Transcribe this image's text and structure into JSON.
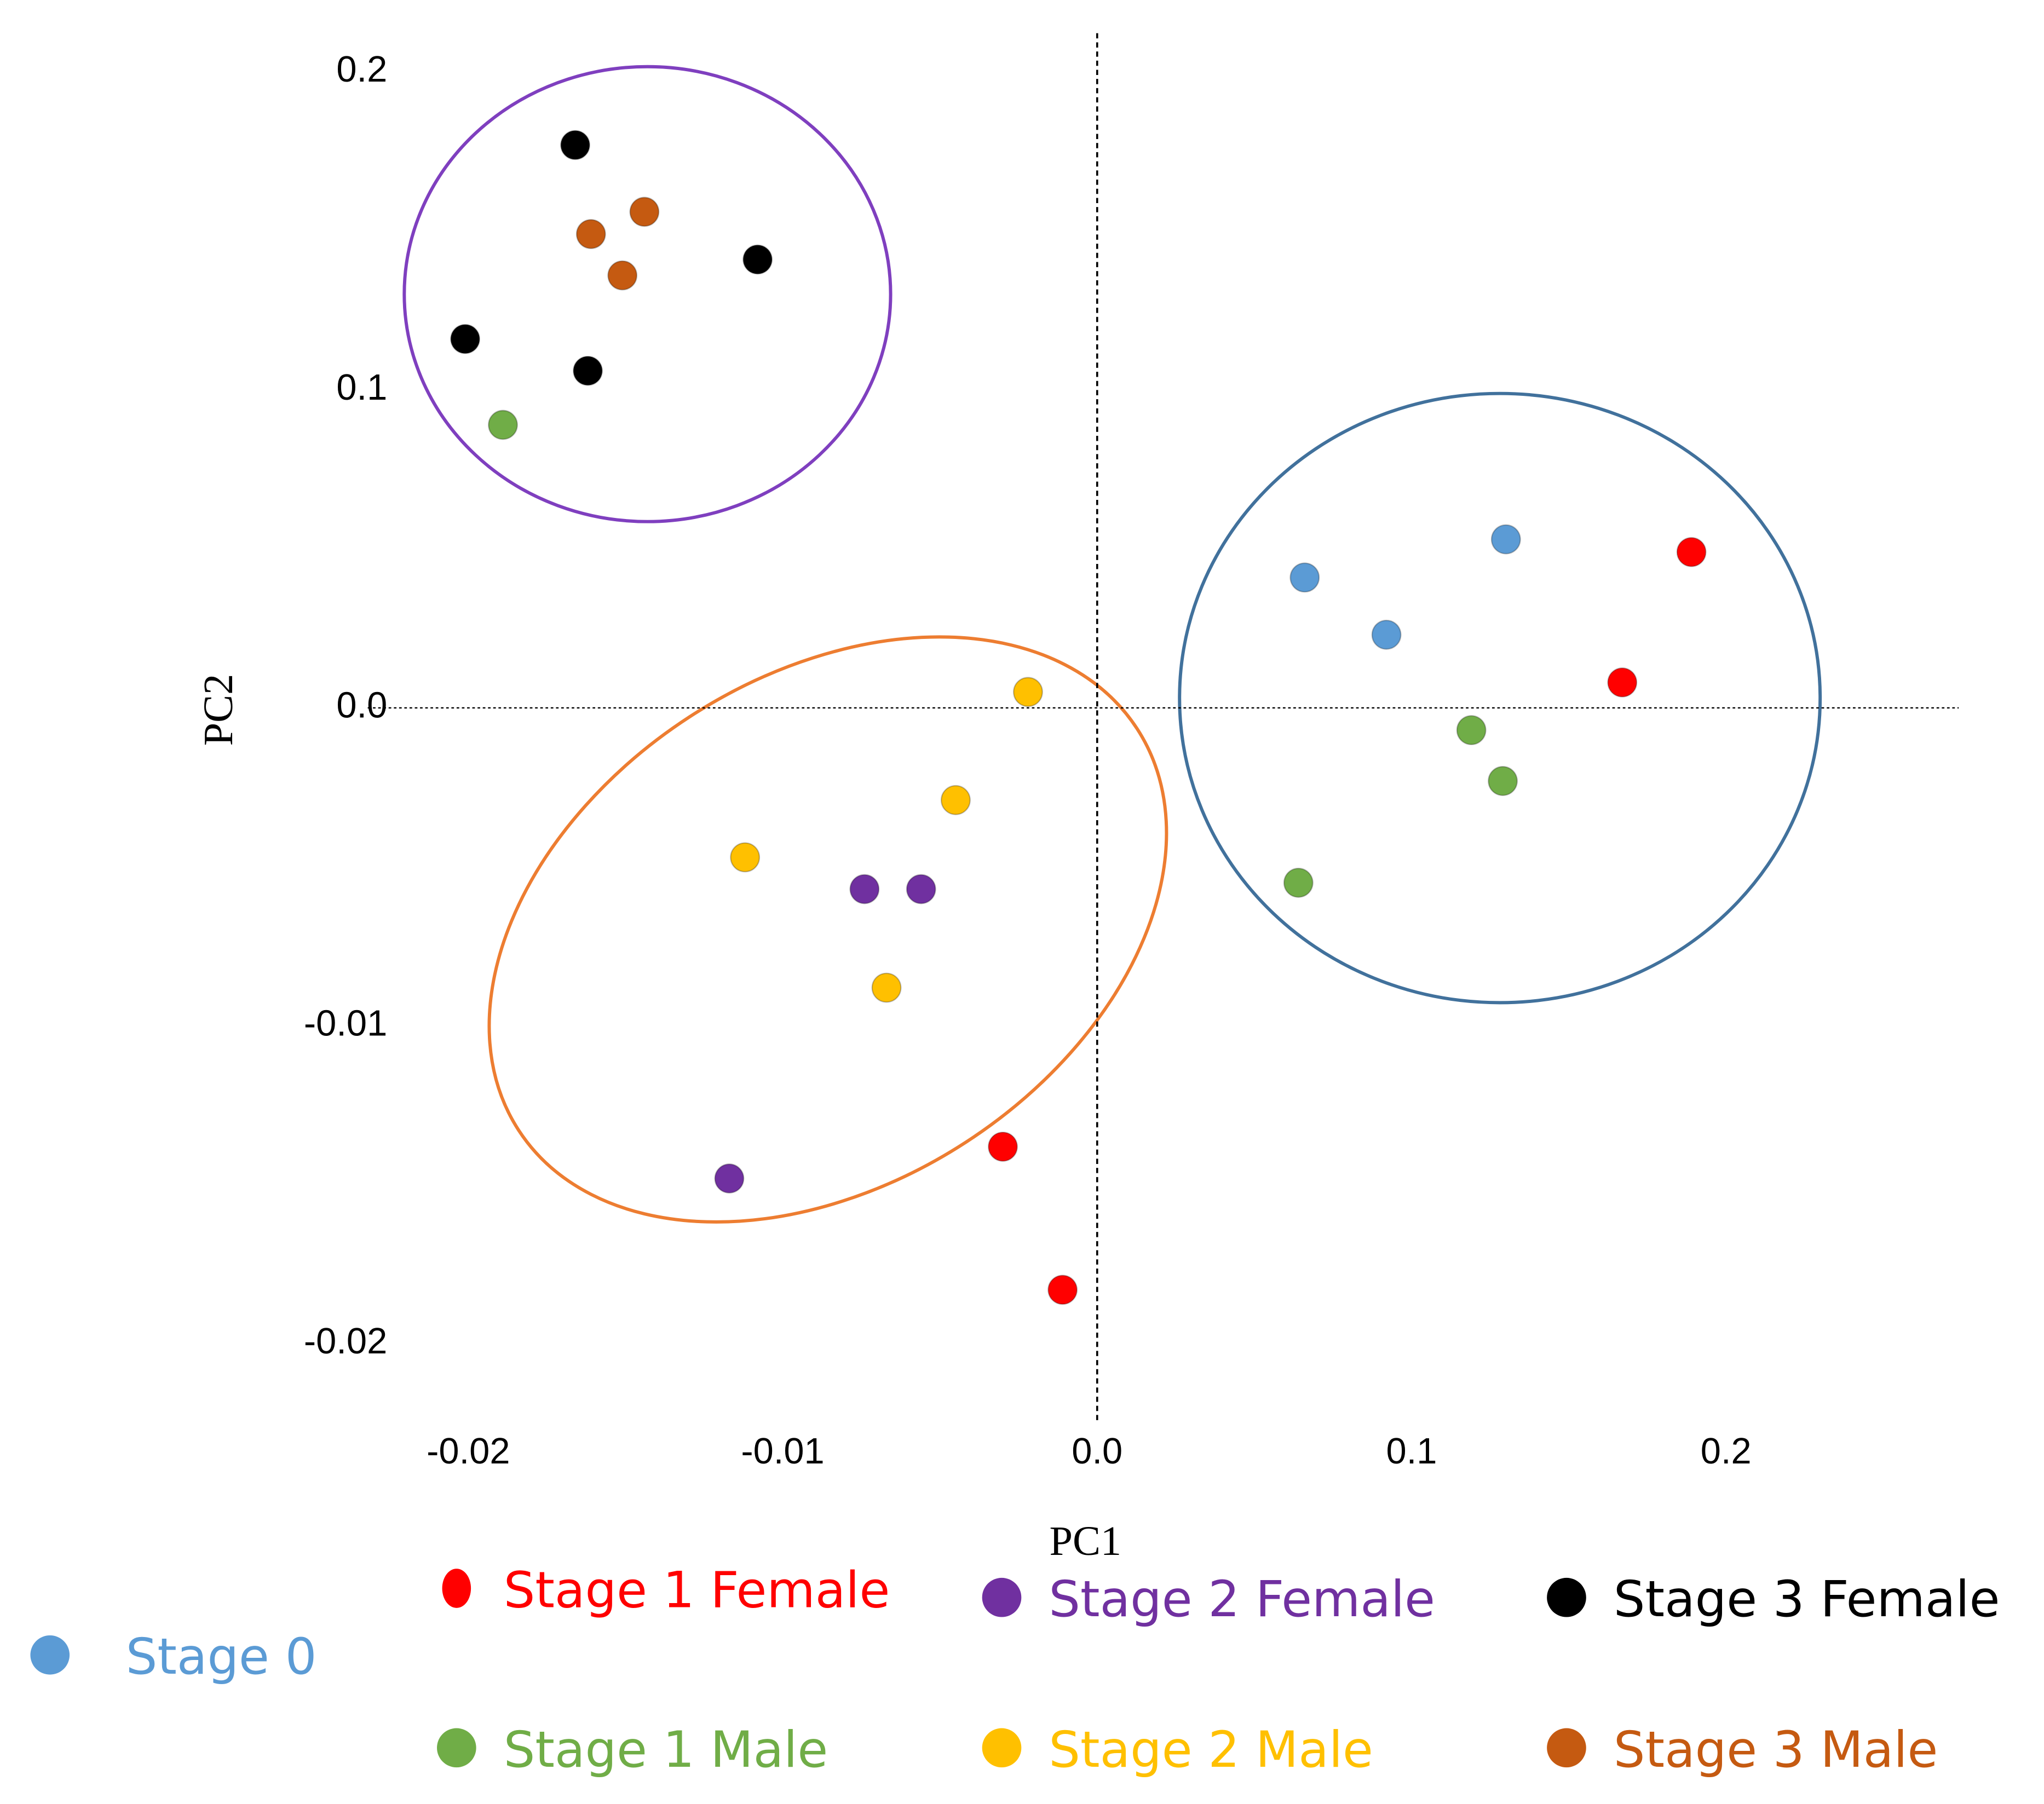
{
  "chart_data": {
    "type": "scatter",
    "x_label": "PC1",
    "y_label": "PC2",
    "xticks": [
      -0.02,
      -0.01,
      {
        "value": 0,
        "label": "0.0"
      },
      0.1,
      0.2
    ],
    "yticks": [
      -0.02,
      -0.01,
      {
        "value": 0,
        "label": "0.0"
      },
      0.1,
      0.2
    ],
    "xlim": [
      -0.0232,
      0.274
    ],
    "ylim": [
      -0.0224,
      0.213
    ],
    "series": [
      {
        "name": "Stage 0",
        "color": "#5b9bd5",
        "x": [
          0.066,
          0.092,
          0.13
        ],
        "values": [
          0.041,
          0.023,
          0.053
        ]
      },
      {
        "name": "Stage 1 Female",
        "color": "#ff0000",
        "x": [
          0.189,
          0.167,
          -0.003,
          -0.0011
        ],
        "values": [
          0.049,
          0.008,
          -0.0138,
          -0.0183
        ]
      },
      {
        "name": "Stage 2 Female",
        "color": "#7030a0",
        "x": [
          -0.0074,
          -0.0056,
          -0.0117
        ],
        "values": [
          -0.0057,
          -0.0057,
          -0.0148
        ]
      },
      {
        "name": "Stage 3 Female",
        "color": "#000000",
        "x": [
          -0.0166,
          -0.0108,
          -0.0201,
          -0.0162
        ],
        "values": [
          0.177,
          0.141,
          0.116,
          0.106
        ]
      },
      {
        "name": "Stage 1 Male",
        "color": "#70ad47",
        "x": [
          -0.0189,
          0.119,
          0.129,
          0.064
        ],
        "values": [
          0.089,
          -0.0007,
          -0.0023,
          -0.0055
        ]
      },
      {
        "name": "Stage 2 Male",
        "color": "#ffc000",
        "x": [
          -0.0022,
          -0.0045,
          -0.0112,
          -0.0067
        ],
        "values": [
          0.005,
          -0.0029,
          -0.0047,
          -0.0088
        ]
      },
      {
        "name": "Stage 3 Male",
        "color": "#c55a11",
        "x": [
          -0.0144,
          -0.0161,
          -0.0151
        ],
        "values": [
          0.156,
          0.149,
          0.136
        ]
      }
    ]
  }
}
